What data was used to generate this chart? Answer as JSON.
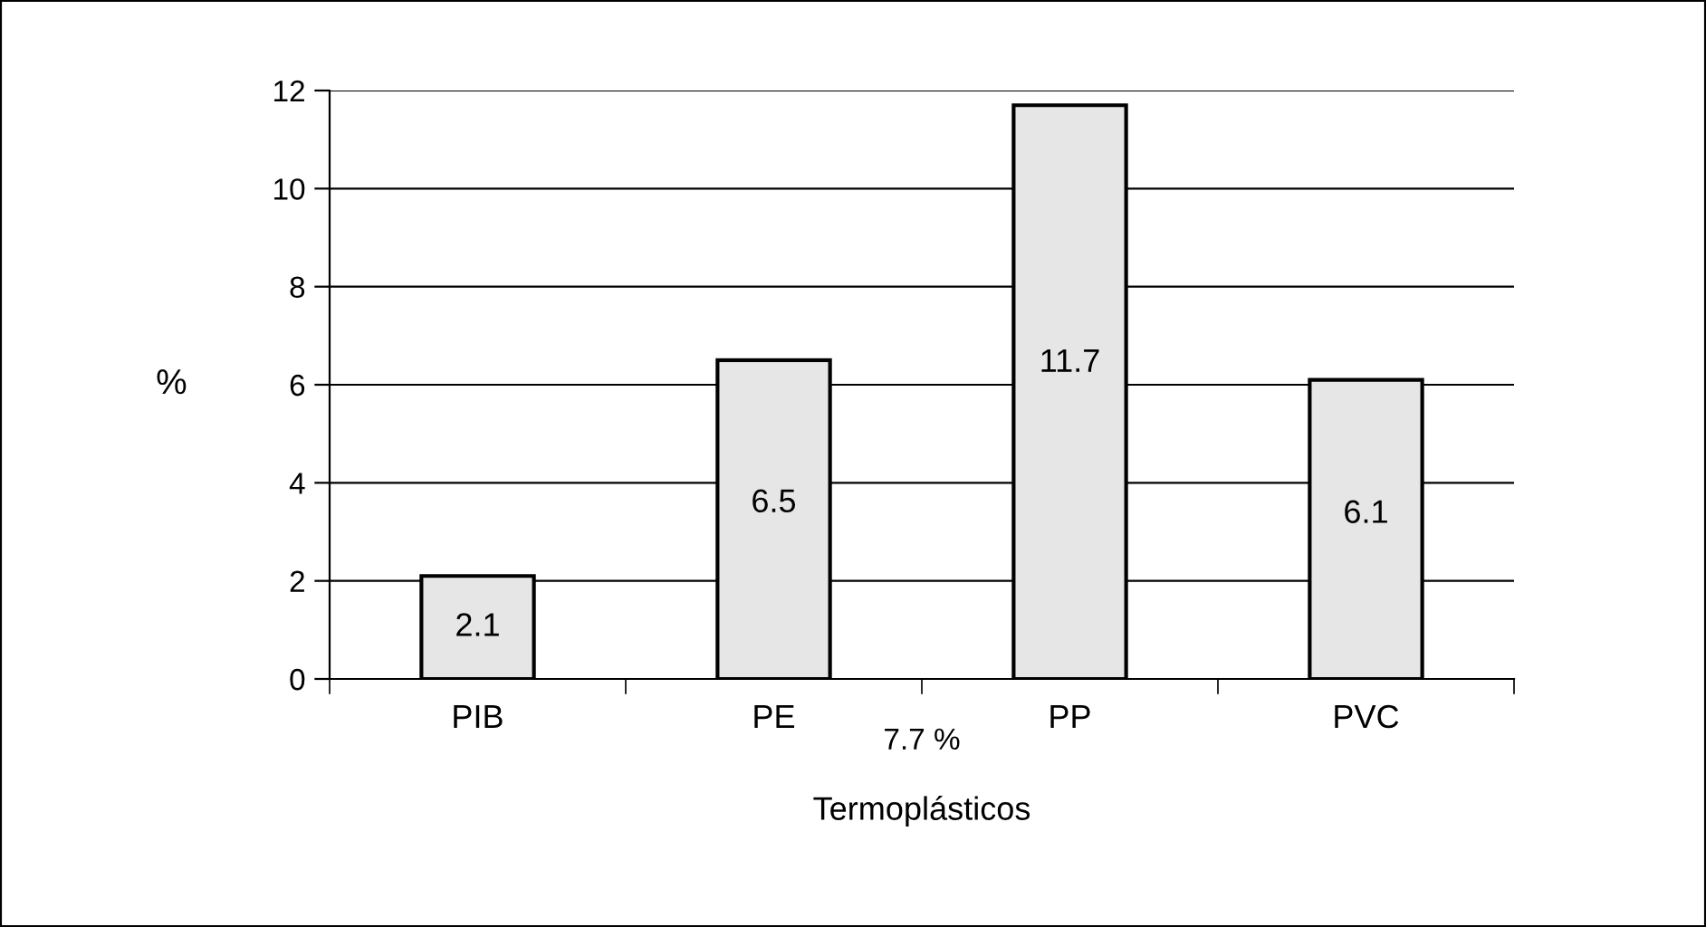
{
  "chart_data": {
    "type": "bar",
    "categories": [
      "PIB",
      "PE",
      "PP",
      "PVC"
    ],
    "values": [
      2.1,
      6.5,
      11.7,
      6.1
    ],
    "color": "#e6e6e6",
    "ylabel": "%",
    "ylim": [
      0,
      12
    ],
    "yticks": [
      0,
      2,
      4,
      6,
      8,
      10,
      12
    ],
    "grid": "y",
    "data_labels": true,
    "annotations": [
      "7.7 %",
      "Termoplásticos"
    ]
  }
}
